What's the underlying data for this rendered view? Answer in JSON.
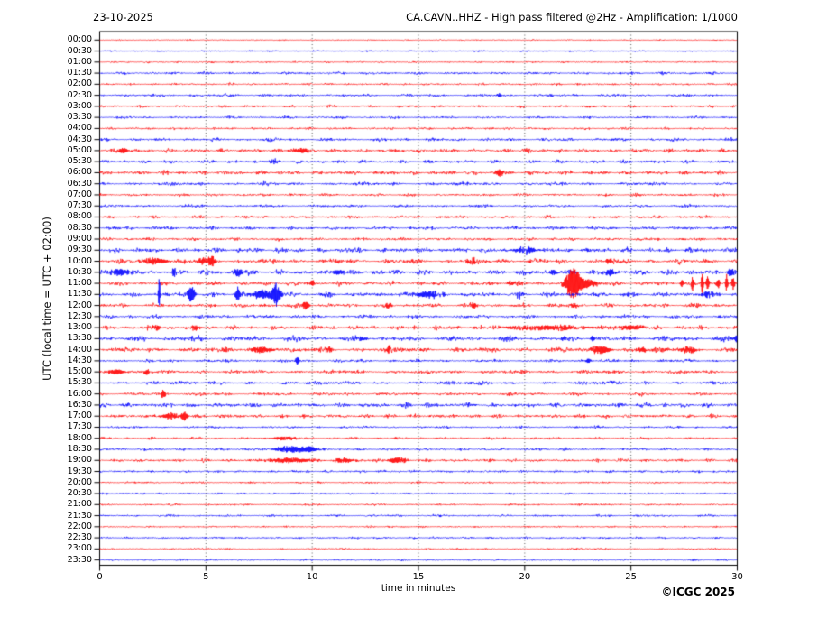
{
  "header": {
    "date": "23-10-2025",
    "title": "CA.CAVN..HHZ - High pass filtered @2Hz - Amplification: 1/1000"
  },
  "axes": {
    "y_label": "UTC (local time = UTC + 02:00)",
    "x_label": "time in minutes",
    "x_ticks": [
      "0",
      "5",
      "10",
      "15",
      "20",
      "25",
      "30"
    ],
    "x_tick_minutes": [
      0,
      5,
      10,
      15,
      20,
      25,
      30
    ],
    "grid_minutes": [
      5,
      10,
      15,
      20,
      25
    ],
    "x_range": [
      0,
      30
    ]
  },
  "footer": {
    "copyright": "©ICGC 2025"
  },
  "colors": {
    "trace_red": "#ff0000",
    "trace_blue": "#0000ff",
    "grid": "#444444",
    "frame": "#000000",
    "background": "#ffffff"
  },
  "chart_data": {
    "type": "line",
    "variant": "helicorder-seismogram",
    "station": "CA.CAVN..HHZ",
    "date": "23-10-2025",
    "filter": "High pass filtered @2Hz",
    "amplification": "1/1000",
    "minutes_per_line": 30,
    "legend": "48 half-hour trace lines, 00:00-23:30 UTC; :00 lines red, :30 lines blue; events listed as [minute, amplitude_px, sigma_min]",
    "rows": [
      {
        "time": "00:00",
        "color": "red",
        "noise": 0.5,
        "events": []
      },
      {
        "time": "00:30",
        "color": "blue",
        "noise": 0.6,
        "events": []
      },
      {
        "time": "01:00",
        "color": "red",
        "noise": 0.7,
        "events": []
      },
      {
        "time": "01:30",
        "color": "blue",
        "noise": 1.1,
        "events": []
      },
      {
        "time": "02:00",
        "color": "red",
        "noise": 0.9,
        "events": []
      },
      {
        "time": "02:30",
        "color": "blue",
        "noise": 1.1,
        "events": [
          [
            18.8,
            2.5,
            0.08
          ]
        ]
      },
      {
        "time": "03:00",
        "color": "red",
        "noise": 1.0,
        "events": []
      },
      {
        "time": "03:30",
        "color": "blue",
        "noise": 1.0,
        "events": []
      },
      {
        "time": "04:00",
        "color": "red",
        "noise": 1.0,
        "events": []
      },
      {
        "time": "04:30",
        "color": "blue",
        "noise": 1.3,
        "events": []
      },
      {
        "time": "05:00",
        "color": "red",
        "noise": 1.6,
        "events": [
          [
            1.1,
            3,
            0.15
          ],
          [
            9.5,
            2.5,
            0.3
          ]
        ]
      },
      {
        "time": "05:30",
        "color": "blue",
        "noise": 1.4,
        "events": [
          [
            8.2,
            2.5,
            0.15
          ]
        ]
      },
      {
        "time": "06:00",
        "color": "red",
        "noise": 1.6,
        "events": [
          [
            18.8,
            4,
            0.12
          ]
        ]
      },
      {
        "time": "06:30",
        "color": "blue",
        "noise": 1.3,
        "events": []
      },
      {
        "time": "07:00",
        "color": "red",
        "noise": 1.1,
        "events": []
      },
      {
        "time": "07:30",
        "color": "blue",
        "noise": 1.1,
        "events": []
      },
      {
        "time": "08:00",
        "color": "red",
        "noise": 1.2,
        "events": []
      },
      {
        "time": "08:30",
        "color": "blue",
        "noise": 1.4,
        "events": []
      },
      {
        "time": "09:00",
        "color": "red",
        "noise": 1.2,
        "events": []
      },
      {
        "time": "09:30",
        "color": "blue",
        "noise": 1.9,
        "events": [
          [
            20,
            2.5,
            0.4
          ]
        ]
      },
      {
        "time": "10:00",
        "color": "red",
        "noise": 1.9,
        "events": [
          [
            2.6,
            3.5,
            0.4
          ],
          [
            4.9,
            3,
            0.3
          ],
          [
            5.3,
            5,
            0.1
          ],
          [
            17.5,
            2.5,
            0.2
          ],
          [
            24,
            3,
            0.15
          ]
        ]
      },
      {
        "time": "10:30",
        "color": "blue",
        "noise": 2.0,
        "events": [
          [
            0.9,
            4,
            0.3
          ],
          [
            3.5,
            6,
            0.06
          ],
          [
            6.5,
            4,
            0.15
          ],
          [
            11.2,
            3,
            0.2
          ],
          [
            21.3,
            3,
            0.15
          ],
          [
            24,
            3.5,
            0.2
          ],
          [
            29.7,
            5,
            0.1
          ]
        ]
      },
      {
        "time": "11:00",
        "color": "red",
        "noise": 1.7,
        "events": [
          [
            10.0,
            4,
            0.08
          ],
          [
            19.3,
            3,
            0.1
          ],
          [
            22.3,
            18,
            0.25
          ],
          [
            23.0,
            4,
            0.3
          ],
          [
            27.4,
            5,
            0.05
          ],
          [
            27.9,
            8,
            0.05
          ],
          [
            28.35,
            14,
            0.04
          ],
          [
            28.6,
            9,
            0.05
          ],
          [
            29.1,
            6,
            0.05
          ],
          [
            29.5,
            10,
            0.04
          ],
          [
            29.8,
            7,
            0.05
          ]
        ]
      },
      {
        "time": "11:30",
        "color": "blue",
        "noise": 1.9,
        "events": [
          [
            2.8,
            22,
            0.025
          ],
          [
            4.3,
            10,
            0.12
          ],
          [
            6.5,
            8,
            0.08
          ],
          [
            7.6,
            5,
            0.3
          ],
          [
            8.3,
            12,
            0.15
          ],
          [
            15.5,
            4,
            0.4
          ],
          [
            19.8,
            3,
            0.15
          ],
          [
            28.5,
            3,
            0.2
          ]
        ]
      },
      {
        "time": "12:00",
        "color": "red",
        "noise": 1.5,
        "events": [
          [
            9.7,
            5,
            0.12
          ],
          [
            13.6,
            3,
            0.1
          ],
          [
            17.6,
            4,
            0.1
          ],
          [
            22.3,
            2.5,
            0.15
          ]
        ]
      },
      {
        "time": "12:30",
        "color": "blue",
        "noise": 1.4,
        "events": []
      },
      {
        "time": "13:00",
        "color": "red",
        "noise": 1.7,
        "events": [
          [
            2.7,
            3,
            0.1
          ],
          [
            4.5,
            2.5,
            0.15
          ],
          [
            21,
            2.5,
            1.5
          ],
          [
            25,
            2.5,
            0.4
          ]
        ]
      },
      {
        "time": "13:30",
        "color": "blue",
        "noise": 2.0,
        "events": [
          [
            12.3,
            2.5,
            0.2
          ],
          [
            23.2,
            3,
            0.08
          ],
          [
            30,
            4,
            0.1
          ]
        ]
      },
      {
        "time": "14:00",
        "color": "red",
        "noise": 1.9,
        "events": [
          [
            7.6,
            3.5,
            0.4
          ],
          [
            10.8,
            3,
            0.1
          ],
          [
            13.6,
            6,
            0.07
          ],
          [
            23.6,
            4.5,
            0.3
          ],
          [
            25.5,
            3,
            0.15
          ],
          [
            27.7,
            3,
            0.3
          ]
        ]
      },
      {
        "time": "14:30",
        "color": "blue",
        "noise": 1.2,
        "events": [
          [
            9.3,
            5,
            0.06
          ],
          [
            23,
            2.5,
            0.08
          ]
        ]
      },
      {
        "time": "15:00",
        "color": "red",
        "noise": 1.5,
        "events": [
          [
            0.8,
            3,
            0.3
          ],
          [
            2.2,
            3,
            0.1
          ]
        ]
      },
      {
        "time": "15:30",
        "color": "blue",
        "noise": 1.4,
        "events": []
      },
      {
        "time": "16:00",
        "color": "red",
        "noise": 1.3,
        "events": [
          [
            3.0,
            5,
            0.07
          ]
        ]
      },
      {
        "time": "16:30",
        "color": "blue",
        "noise": 1.8,
        "events": []
      },
      {
        "time": "17:00",
        "color": "red",
        "noise": 1.5,
        "events": [
          [
            3.3,
            3,
            0.3
          ],
          [
            4.0,
            5,
            0.1
          ]
        ]
      },
      {
        "time": "17:30",
        "color": "blue",
        "noise": 0.9,
        "events": []
      },
      {
        "time": "18:00",
        "color": "red",
        "noise": 1.0,
        "events": [
          [
            8.7,
            2,
            0.4
          ]
        ]
      },
      {
        "time": "18:30",
        "color": "blue",
        "noise": 1.1,
        "events": [
          [
            9.0,
            3.5,
            0.5
          ],
          [
            9.9,
            3,
            0.2
          ]
        ]
      },
      {
        "time": "19:00",
        "color": "red",
        "noise": 1.3,
        "events": [
          [
            9,
            2.5,
            0.8
          ],
          [
            11.5,
            2.5,
            0.3
          ],
          [
            14,
            3,
            0.3
          ]
        ]
      },
      {
        "time": "19:30",
        "color": "blue",
        "noise": 1.0,
        "events": []
      },
      {
        "time": "20:00",
        "color": "red",
        "noise": 0.8,
        "events": []
      },
      {
        "time": "20:30",
        "color": "blue",
        "noise": 0.8,
        "events": []
      },
      {
        "time": "21:00",
        "color": "red",
        "noise": 0.8,
        "events": []
      },
      {
        "time": "21:30",
        "color": "blue",
        "noise": 0.9,
        "events": []
      },
      {
        "time": "22:00",
        "color": "red",
        "noise": 0.7,
        "events": []
      },
      {
        "time": "22:30",
        "color": "blue",
        "noise": 0.8,
        "events": []
      },
      {
        "time": "23:00",
        "color": "red",
        "noise": 0.7,
        "events": []
      },
      {
        "time": "23:30",
        "color": "blue",
        "noise": 0.7,
        "events": []
      }
    ]
  }
}
